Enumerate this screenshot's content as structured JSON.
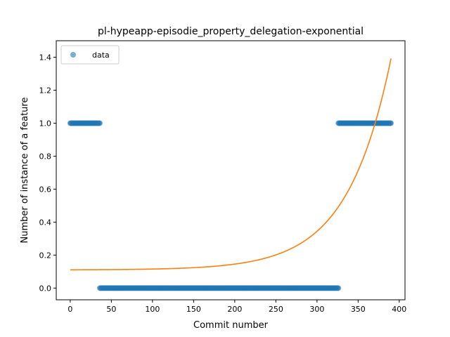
{
  "chart_data": {
    "type": "scatter",
    "title": "pl-hypeapp-episodie_property_delegation-exponential",
    "xlabel": "Commit number",
    "ylabel": "Number of instance of a feature",
    "xlim": [
      -17,
      407
    ],
    "ylim": [
      -0.071,
      1.5
    ],
    "x_ticks": [
      0,
      50,
      100,
      150,
      200,
      250,
      300,
      350,
      400
    ],
    "y_ticks": [
      0.0,
      0.2,
      0.4,
      0.6,
      0.8,
      1.0,
      1.2,
      1.4
    ],
    "x_tick_labels": [
      "0",
      "50",
      "100",
      "150",
      "200",
      "250",
      "300",
      "350",
      "400"
    ],
    "y_tick_labels": [
      "0.0",
      "0.2",
      "0.4",
      "0.6",
      "0.8",
      "1.0",
      "1.2",
      "1.4"
    ],
    "grid": false,
    "legend_position": "top-left",
    "series": [
      {
        "name": "data",
        "kind": "points",
        "color": "#1f77b4",
        "opacity": 0.6,
        "segments": [
          {
            "x_start": 0,
            "x_end": 36,
            "y": 1.0
          },
          {
            "x_start": 36,
            "x_end": 326,
            "y": 0.0
          },
          {
            "x_start": 326,
            "x_end": 390,
            "y": 1.0
          }
        ]
      },
      {
        "kind": "line",
        "color": "#ff7f0e",
        "model": "exponential",
        "x_range": [
          0,
          390
        ],
        "params": {
          "a": 0.00081,
          "b": 0.01889,
          "c": 0.11
        }
      }
    ]
  }
}
